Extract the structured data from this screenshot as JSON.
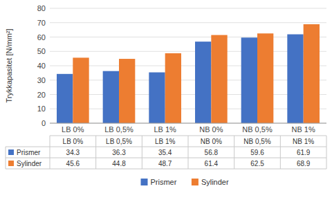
{
  "chart_data": {
    "type": "bar",
    "ylabel": "Trykkapasitet [N/mm²]",
    "categories": [
      "LB 0%",
      "LB 0,5%",
      "LB 1%",
      "NB 0%",
      "NB 0,5%",
      "NB 1%"
    ],
    "series": [
      {
        "name": "Prismer",
        "color": "#4472C4",
        "values": [
          34.3,
          36.3,
          35.4,
          56.8,
          59.6,
          61.9
        ]
      },
      {
        "name": "Sylinder",
        "color": "#ED7D31",
        "values": [
          45.6,
          44.8,
          48.7,
          61.4,
          62.5,
          68.9
        ]
      }
    ],
    "ylim": [
      0,
      80
    ],
    "yticks": [
      0,
      10,
      20,
      30,
      40,
      50,
      60,
      70,
      80
    ],
    "grid": true,
    "legend": "bottom"
  }
}
